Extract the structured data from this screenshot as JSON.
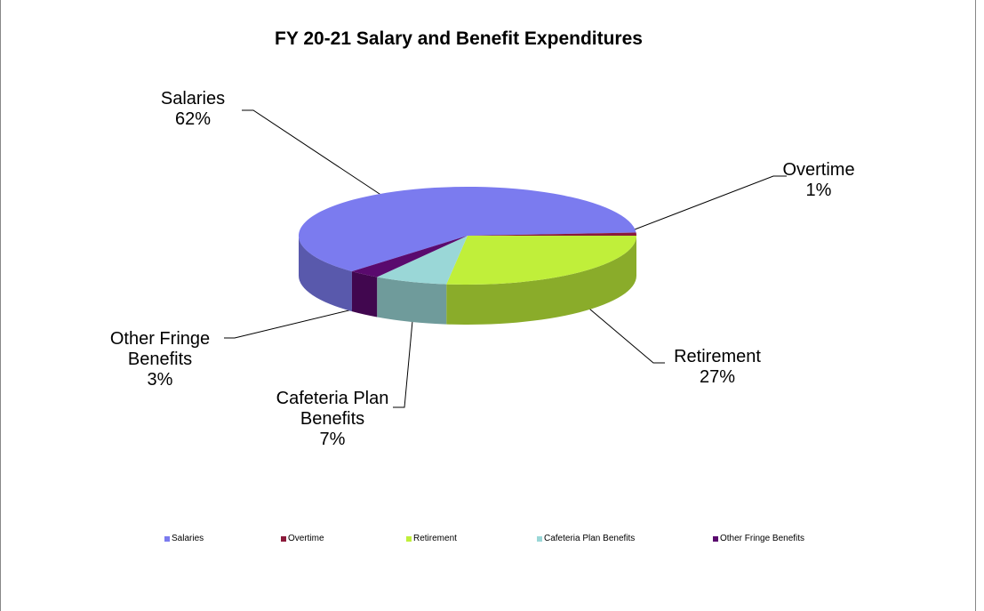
{
  "chart_data": {
    "type": "pie3d",
    "title": "FY 20-21 Salary and Benefit Expenditures",
    "categories": [
      "Salaries",
      "Overtime",
      "Retirement",
      "Cafeteria Plan Benefits",
      "Other Fringe Benefits"
    ],
    "values": [
      62,
      1,
      27,
      7,
      3
    ],
    "value_labels": [
      "62%",
      "1%",
      "27%",
      "7%",
      "3%"
    ],
    "colors": [
      "#7b7bef",
      "#8b1a3a",
      "#c0ef3a",
      "#9ad7d7",
      "#5a0a6e"
    ],
    "legend": "bottom"
  }
}
